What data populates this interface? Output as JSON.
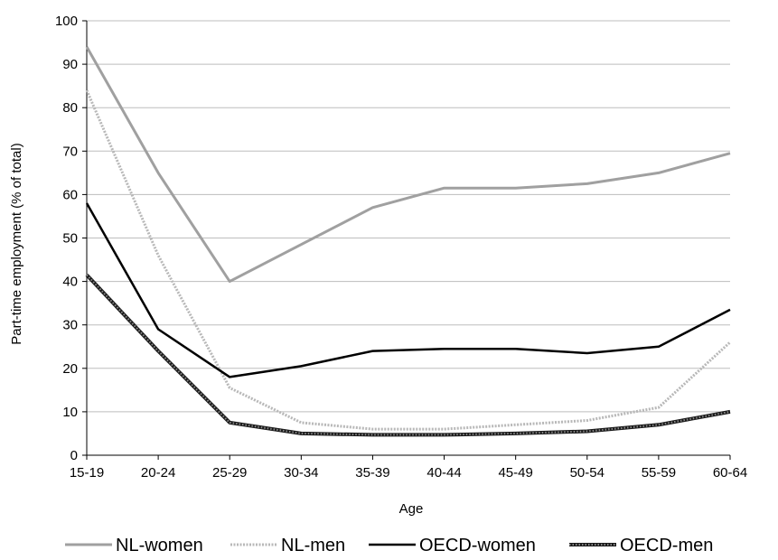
{
  "chart_data": {
    "type": "line",
    "xlabel": "Age",
    "ylabel": "Part-time employment (% of total)",
    "categories": [
      "15-19",
      "20-24",
      "25-29",
      "30-34",
      "35-39",
      "40-44",
      "45-49",
      "50-54",
      "55-59",
      "60-64"
    ],
    "ylim": [
      0,
      100
    ],
    "yticks": [
      0,
      10,
      20,
      30,
      40,
      50,
      60,
      70,
      80,
      90,
      100
    ],
    "grid": true,
    "legend_position": "bottom",
    "series": [
      {
        "name": "NL-women",
        "color": "#a0a0a0",
        "style": "solid",
        "values": [
          94,
          65,
          40,
          48.5,
          57,
          61.5,
          61.5,
          62.5,
          65,
          69.5
        ]
      },
      {
        "name": "NL-men",
        "color": "#b8b8b8",
        "style": "dotted",
        "values": [
          84,
          46,
          15.5,
          7.5,
          6,
          6,
          7,
          8,
          11,
          26
        ]
      },
      {
        "name": "OECD-women",
        "color": "#000000",
        "style": "solid",
        "values": [
          58,
          29,
          18,
          20.5,
          24,
          24.5,
          24.5,
          23.5,
          25,
          33.5
        ]
      },
      {
        "name": "OECD-men",
        "color": "#1a1a1a",
        "style": "dotted-dark",
        "values": [
          41.5,
          24,
          7.5,
          5,
          4.7,
          4.7,
          5,
          5.5,
          7,
          10
        ]
      }
    ]
  }
}
